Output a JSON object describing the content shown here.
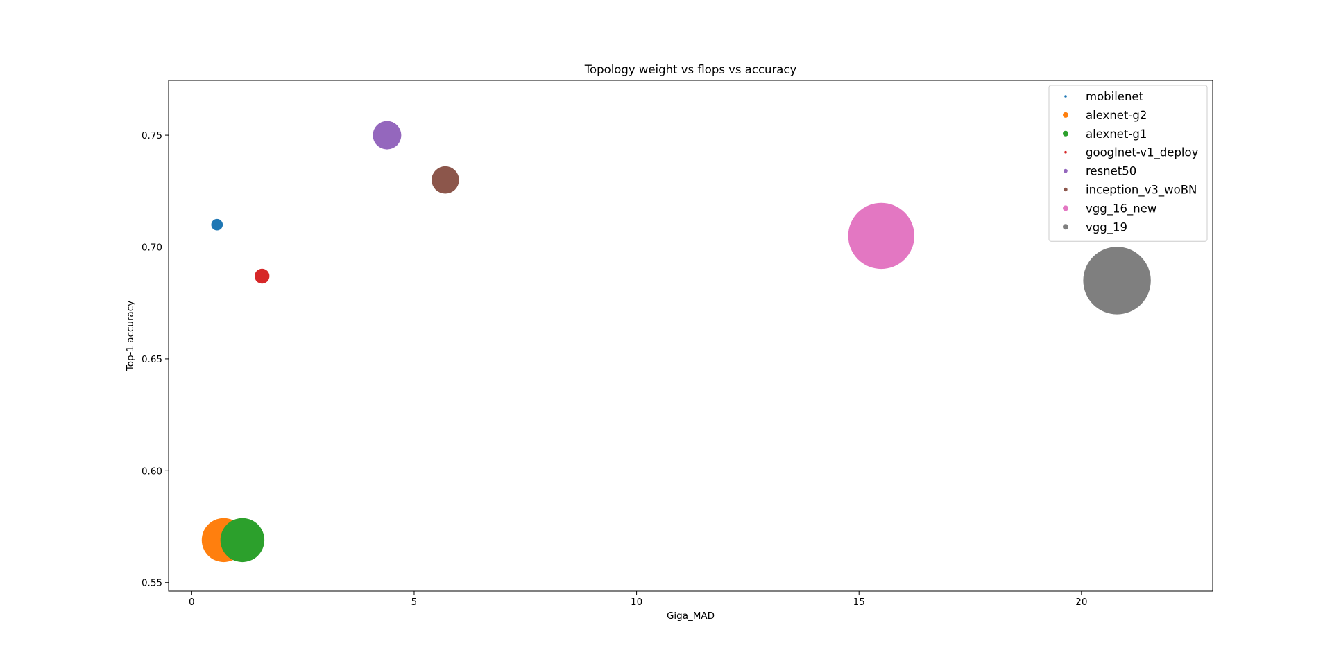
{
  "chart_data": {
    "type": "scatter",
    "title": "Topology weight vs flops vs accuracy",
    "xlabel": "Giga_MAD",
    "ylabel": "Top-1 accuracy",
    "xlim": [
      -0.52,
      22.95
    ],
    "ylim": [
      0.5462,
      0.7745
    ],
    "xticks": [
      0,
      5,
      10,
      15,
      20
    ],
    "yticks": [
      0.55,
      0.6,
      0.65,
      0.7,
      0.75
    ],
    "ytick_labels": [
      "0.55",
      "0.60",
      "0.65",
      "0.70",
      "0.75"
    ],
    "grid": false,
    "legend_position": "top-right",
    "size_encoding": "topology weight",
    "series": [
      {
        "name": "mobilenet",
        "x": 0.569,
        "y": 0.71,
        "weight": 4.2,
        "color": "#1f77b4"
      },
      {
        "name": "alexnet-g2",
        "x": 0.72,
        "y": 0.569,
        "weight": 61.0,
        "color": "#ff7f0e"
      },
      {
        "name": "alexnet-g1",
        "x": 1.14,
        "y": 0.569,
        "weight": 61.0,
        "color": "#2ca02c"
      },
      {
        "name": "googlnet-v1_deploy",
        "x": 1.58,
        "y": 0.687,
        "weight": 7.0,
        "color": "#d62728"
      },
      {
        "name": "resnet50",
        "x": 4.39,
        "y": 0.75,
        "weight": 25.6,
        "color": "#9467bd"
      },
      {
        "name": "inception_v3_woBN",
        "x": 5.7,
        "y": 0.73,
        "weight": 23.8,
        "color": "#8c564b"
      },
      {
        "name": "vgg_16_new",
        "x": 15.5,
        "y": 0.705,
        "weight": 138.0,
        "color": "#e377c2"
      },
      {
        "name": "vgg_19",
        "x": 20.8,
        "y": 0.685,
        "weight": 144.0,
        "color": "#7f7f7f"
      }
    ]
  }
}
